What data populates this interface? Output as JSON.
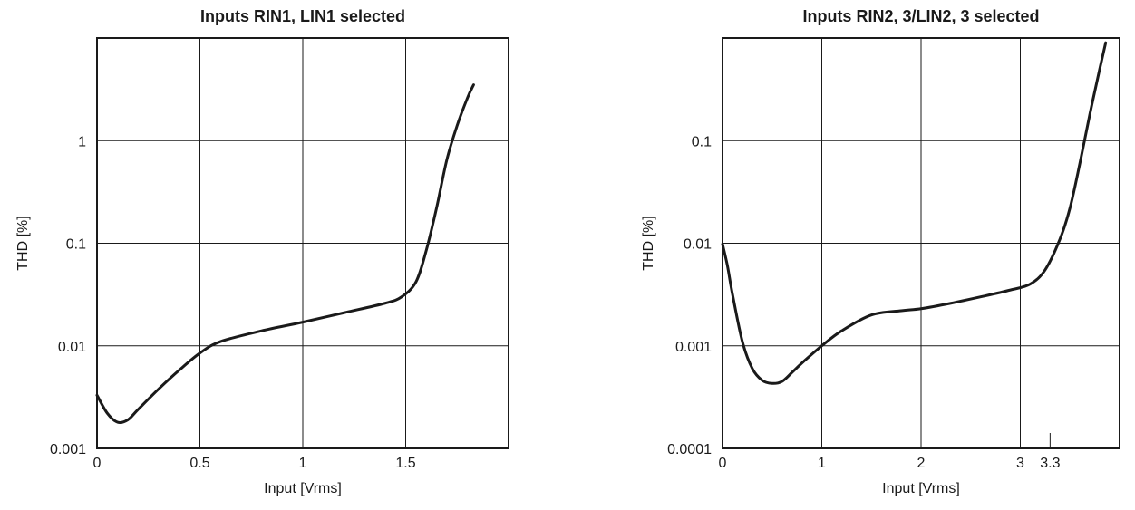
{
  "chart_data": [
    {
      "type": "line",
      "title": "Inputs RIN1, LIN1 selected",
      "xlabel": "Input [Vrms]",
      "ylabel": "THD [%]",
      "xlim": [
        0,
        2.0
      ],
      "ylim": [
        0.001,
        10
      ],
      "yscale": "log",
      "grid": true,
      "xticks": [
        0,
        0.5,
        1,
        1.5
      ],
      "xtick_labels": [
        "0",
        "0.5",
        "1",
        "1.5"
      ],
      "yticks": [
        0.001,
        0.01,
        0.1,
        1
      ],
      "ytick_labels": [
        "0.001",
        "0.01",
        "0.1",
        "1"
      ],
      "series": [
        {
          "x": [
            0,
            0.05,
            0.1,
            0.15,
            0.2,
            0.3,
            0.4,
            0.5,
            0.6,
            0.8,
            1.0,
            1.2,
            1.4,
            1.48,
            1.55,
            1.6,
            1.65,
            1.7,
            1.75,
            1.8,
            1.83
          ],
          "y": [
            0.0033,
            0.0022,
            0.0018,
            0.0019,
            0.0024,
            0.0038,
            0.0058,
            0.0085,
            0.011,
            0.014,
            0.017,
            0.021,
            0.026,
            0.03,
            0.042,
            0.085,
            0.22,
            0.65,
            1.4,
            2.6,
            3.5
          ]
        }
      ]
    },
    {
      "type": "line",
      "title": "Inputs RIN2, 3/LIN2, 3 selected",
      "xlabel": "Input [Vrms]",
      "ylabel": "THD [%]",
      "xlim": [
        0,
        4.0
      ],
      "ylim": [
        0.0001,
        1
      ],
      "yscale": "log",
      "grid": true,
      "xticks": [
        0,
        1,
        2,
        3
      ],
      "xtick_labels": [
        "0",
        "1",
        "2",
        "3"
      ],
      "extra_xtick": {
        "value": 3.3,
        "label": "3.3"
      },
      "yticks": [
        0.0001,
        0.001,
        0.01,
        0.1
      ],
      "ytick_labels": [
        "0.0001",
        "0.001",
        "0.01",
        "0.1"
      ],
      "series": [
        {
          "x": [
            0,
            0.05,
            0.1,
            0.2,
            0.3,
            0.4,
            0.5,
            0.6,
            0.7,
            0.8,
            1.0,
            1.2,
            1.5,
            1.8,
            2.0,
            2.3,
            2.6,
            2.9,
            3.1,
            3.25,
            3.4,
            3.5,
            3.6,
            3.7,
            3.8,
            3.86
          ],
          "y": [
            0.0098,
            0.006,
            0.0032,
            0.0011,
            0.0006,
            0.00046,
            0.00043,
            0.00045,
            0.00055,
            0.00068,
            0.001,
            0.0014,
            0.002,
            0.0022,
            0.0023,
            0.0026,
            0.003,
            0.0035,
            0.004,
            0.0055,
            0.011,
            0.022,
            0.06,
            0.18,
            0.5,
            0.9
          ]
        }
      ]
    }
  ]
}
